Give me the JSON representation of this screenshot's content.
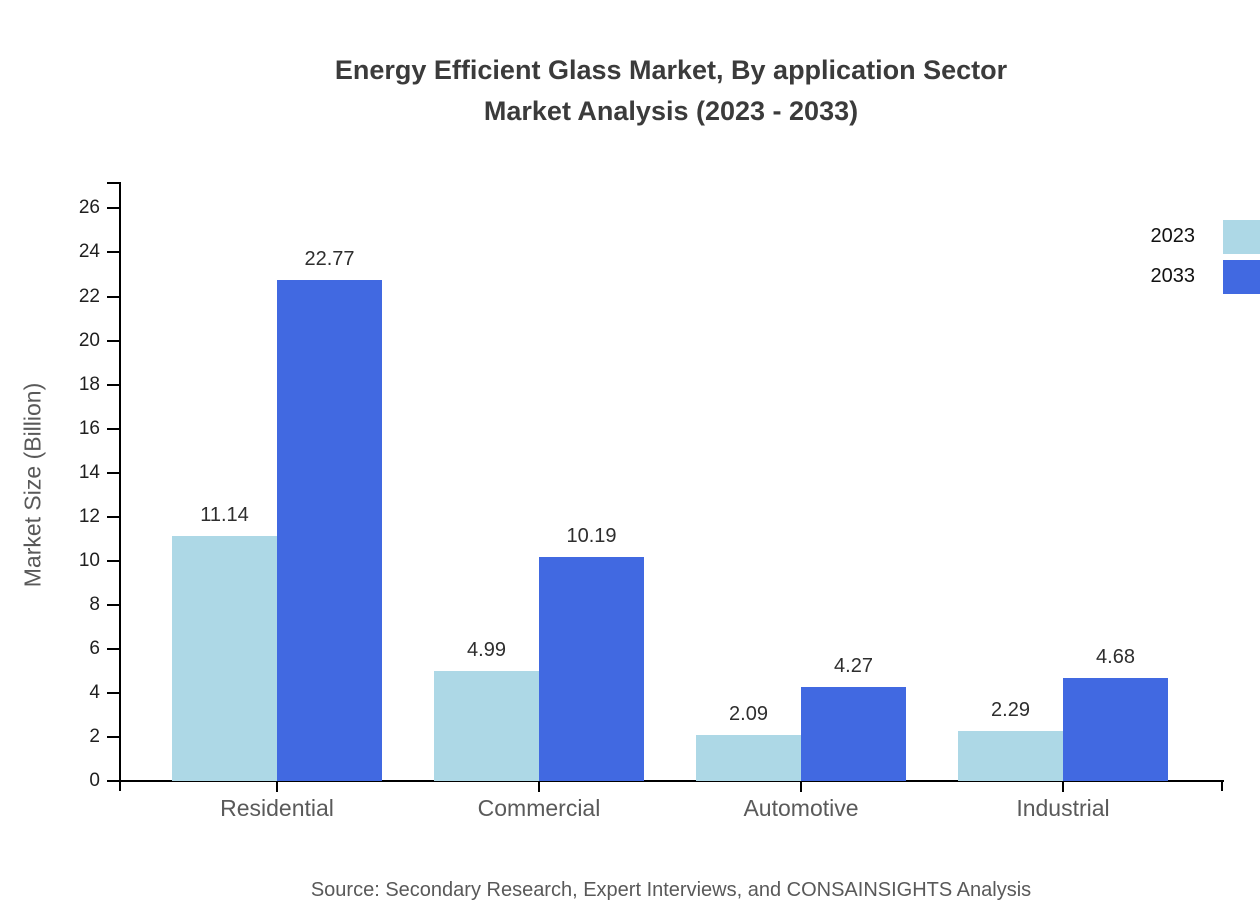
{
  "chart_data": {
    "type": "bar",
    "title_line1": "Energy Efficient Glass Market, By application Sector",
    "title_line2": "Market Analysis (2023 - 2033)",
    "ylabel": "Market Size (Billion)",
    "source": "Source: Secondary Research, Expert Interviews, and CONSAINSIGHTS Analysis",
    "categories": [
      "Residential",
      "Commercial",
      "Automotive",
      "Industrial"
    ],
    "series": [
      {
        "name": "2023",
        "color": "#ADD8E6",
        "values": [
          11.14,
          4.99,
          2.09,
          2.29
        ]
      },
      {
        "name": "2033",
        "color": "#4169E1",
        "values": [
          22.77,
          10.19,
          4.27,
          4.68
        ]
      }
    ],
    "ylim": [
      0,
      27.2
    ],
    "yticks": [
      0,
      2,
      4,
      6,
      8,
      10,
      12,
      14,
      16,
      18,
      20,
      22,
      24,
      26
    ],
    "grid": false,
    "value_labels": true,
    "value_label_decimals": 2,
    "legend_position": "top-right",
    "axis_color": "#000000",
    "background_color": "#ffffff",
    "title_color": "#3b3b3b",
    "tick_label_color": "#1f1f1f",
    "category_label_color": "#5a5a5a",
    "source_color": "#595959"
  }
}
